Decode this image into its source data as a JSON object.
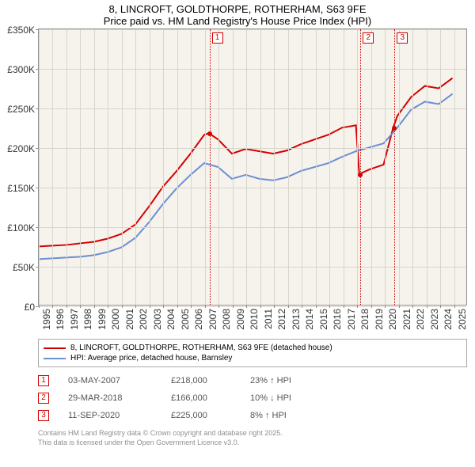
{
  "title": {
    "line1": "8, LINCROFT, GOLDTHORPE, ROTHERHAM, S63 9FE",
    "line2": "Price paid vs. HM Land Registry's House Price Index (HPI)"
  },
  "chart": {
    "type": "line",
    "background_color": "#f6f2ec",
    "grid_color": "#d8d4ce",
    "border_color": "#909090",
    "x": {
      "min": 1995,
      "max": 2026,
      "ticks": [
        1995,
        1996,
        1997,
        1998,
        1999,
        2000,
        2001,
        2002,
        2003,
        2004,
        2005,
        2006,
        2007,
        2008,
        2009,
        2010,
        2011,
        2012,
        2013,
        2014,
        2015,
        2016,
        2017,
        2018,
        2019,
        2020,
        2021,
        2022,
        2023,
        2024,
        2025
      ]
    },
    "y": {
      "min": 0,
      "max": 350000,
      "ticks": [
        0,
        50000,
        100000,
        150000,
        200000,
        250000,
        300000,
        350000
      ],
      "tick_labels": [
        "£0",
        "£50K",
        "£100K",
        "£150K",
        "£200K",
        "£250K",
        "£300K",
        "£350K"
      ]
    },
    "series": [
      {
        "name": "property",
        "color": "#d40000",
        "width": 2,
        "points": [
          [
            1995,
            74000
          ],
          [
            1996,
            75000
          ],
          [
            1997,
            76000
          ],
          [
            1998,
            78000
          ],
          [
            1999,
            80000
          ],
          [
            2000,
            84000
          ],
          [
            2001,
            90000
          ],
          [
            2002,
            102000
          ],
          [
            2003,
            125000
          ],
          [
            2004,
            150000
          ],
          [
            2005,
            170000
          ],
          [
            2006,
            192000
          ],
          [
            2007,
            216000
          ],
          [
            2007.33,
            218000
          ],
          [
            2008,
            210000
          ],
          [
            2009,
            192000
          ],
          [
            2010,
            198000
          ],
          [
            2011,
            195000
          ],
          [
            2012,
            192000
          ],
          [
            2013,
            196000
          ],
          [
            2014,
            204000
          ],
          [
            2015,
            210000
          ],
          [
            2016,
            216000
          ],
          [
            2017,
            225000
          ],
          [
            2018,
            228000
          ],
          [
            2018.24,
            166000
          ],
          [
            2019,
            172000
          ],
          [
            2020,
            178000
          ],
          [
            2020.7,
            225000
          ],
          [
            2021,
            240000
          ],
          [
            2022,
            264000
          ],
          [
            2023,
            278000
          ],
          [
            2024,
            275000
          ],
          [
            2025,
            288000
          ]
        ]
      },
      {
        "name": "hpi",
        "color": "#6a8fd4",
        "width": 2,
        "points": [
          [
            1995,
            58000
          ],
          [
            1996,
            59000
          ],
          [
            1997,
            60000
          ],
          [
            1998,
            61000
          ],
          [
            1999,
            63000
          ],
          [
            2000,
            67000
          ],
          [
            2001,
            73000
          ],
          [
            2002,
            85000
          ],
          [
            2003,
            105000
          ],
          [
            2004,
            128000
          ],
          [
            2005,
            148000
          ],
          [
            2006,
            165000
          ],
          [
            2007,
            180000
          ],
          [
            2008,
            175000
          ],
          [
            2009,
            160000
          ],
          [
            2010,
            165000
          ],
          [
            2011,
            160000
          ],
          [
            2012,
            158000
          ],
          [
            2013,
            162000
          ],
          [
            2014,
            170000
          ],
          [
            2015,
            175000
          ],
          [
            2016,
            180000
          ],
          [
            2017,
            188000
          ],
          [
            2018,
            195000
          ],
          [
            2019,
            200000
          ],
          [
            2020,
            205000
          ],
          [
            2021,
            225000
          ],
          [
            2022,
            248000
          ],
          [
            2023,
            258000
          ],
          [
            2024,
            255000
          ],
          [
            2025,
            268000
          ]
        ]
      }
    ],
    "markers": [
      {
        "id": "1",
        "x": 2007.33,
        "y": 218000
      },
      {
        "id": "2",
        "x": 2018.24,
        "y": 166000
      },
      {
        "id": "3",
        "x": 2020.7,
        "y": 225000
      }
    ]
  },
  "legend": {
    "items": [
      {
        "color": "#d40000",
        "label": "8, LINCROFT, GOLDTHORPE, ROTHERHAM, S63 9FE (detached house)"
      },
      {
        "color": "#6a8fd4",
        "label": "HPI: Average price, detached house, Barnsley"
      }
    ]
  },
  "events": [
    {
      "id": "1",
      "date": "03-MAY-2007",
      "price": "£218,000",
      "delta": "23% ↑ HPI"
    },
    {
      "id": "2",
      "date": "29-MAR-2018",
      "price": "£166,000",
      "delta": "10% ↓ HPI"
    },
    {
      "id": "3",
      "date": "11-SEP-2020",
      "price": "£225,000",
      "delta": "8% ↑ HPI"
    }
  ],
  "footer": {
    "line1": "Contains HM Land Registry data © Crown copyright and database right 2025.",
    "line2": "This data is licensed under the Open Government Licence v3.0."
  }
}
